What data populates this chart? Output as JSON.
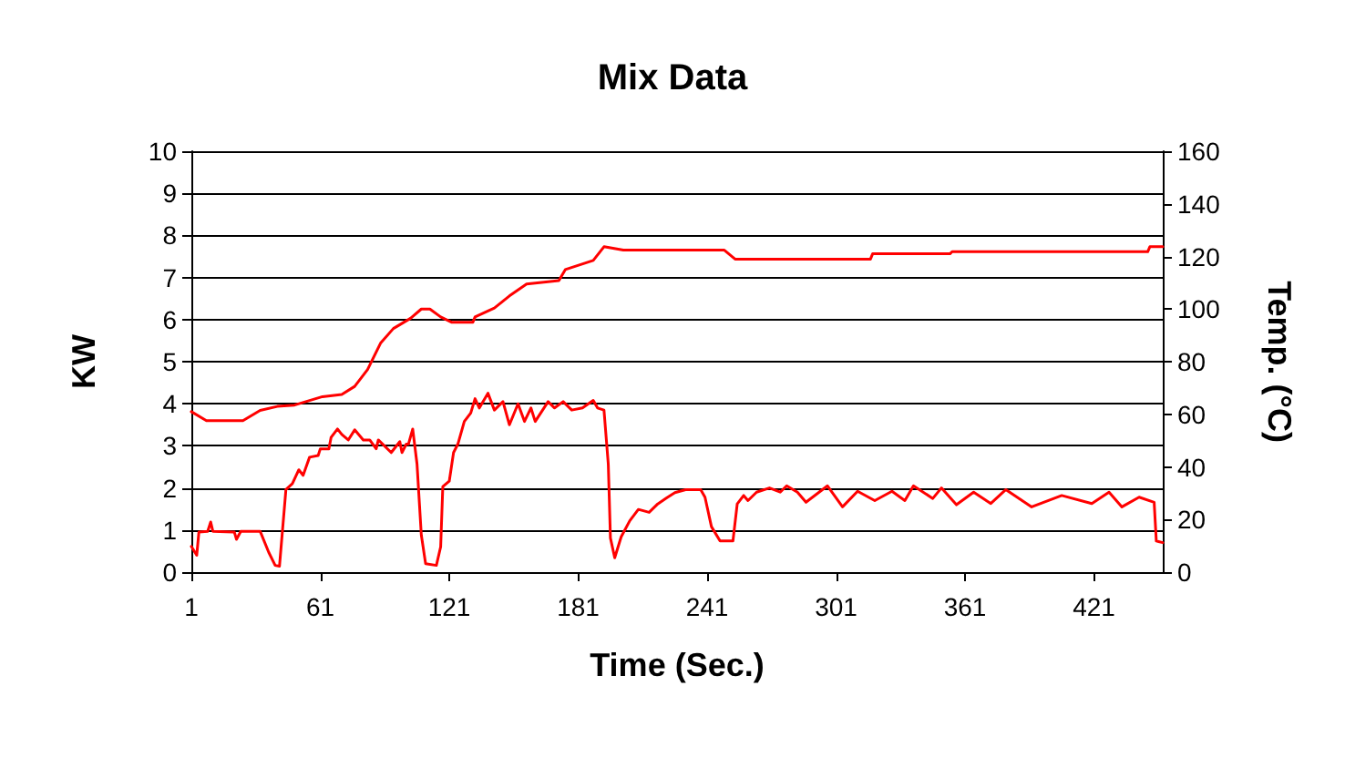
{
  "chart_data": {
    "type": "line",
    "title": "Mix Data",
    "xlabel": "Time (Sec.)",
    "ylabel": "KW",
    "y2label": "Temp. (°C)",
    "xlim": [
      1,
      453
    ],
    "xticks": [
      1,
      61,
      121,
      181,
      241,
      301,
      361,
      421
    ],
    "ylim": [
      0,
      10
    ],
    "yticks": [
      0,
      1,
      2,
      3,
      4,
      5,
      6,
      7,
      8,
      9,
      10
    ],
    "y2lim": [
      0,
      160
    ],
    "y2ticks": [
      0,
      20,
      40,
      60,
      80,
      100,
      120,
      140,
      160
    ],
    "grid": "y",
    "marker": "none",
    "line_style": "solid",
    "series": [
      {
        "color": "#ff0000",
        "x": [
          1,
          3.5,
          4.5,
          8.6,
          10,
          11,
          21,
          22,
          24,
          33,
          37,
          40,
          42,
          45,
          48,
          51,
          53,
          56,
          60,
          61,
          65,
          66,
          69,
          71,
          74,
          77,
          81,
          84,
          87,
          88,
          94,
          98,
          99,
          101,
          102,
          104,
          106,
          108,
          110,
          115,
          117,
          118,
          121,
          123,
          125,
          128,
          131,
          133,
          135,
          139,
          142,
          146,
          149,
          153,
          156,
          159,
          161,
          167,
          170,
          174,
          178,
          183,
          188,
          190,
          193,
          195,
          196,
          198,
          201,
          205,
          209,
          214,
          218,
          222,
          226,
          231,
          238,
          240,
          243,
          247,
          253,
          255,
          258,
          260,
          264,
          270,
          275,
          278,
          283,
          287,
          297,
          304,
          311,
          319,
          327,
          333,
          337,
          346,
          350,
          357,
          365,
          373,
          380,
          392,
          406,
          420,
          428,
          434,
          442,
          449,
          450,
          453
        ],
        "values": [
          0.61,
          0.4,
          0.95,
          0.97,
          1.19,
          0.97,
          0.95,
          0.78,
          0.97,
          0.97,
          0.47,
          0.16,
          0.14,
          1.96,
          2.1,
          2.43,
          2.3,
          2.73,
          2.77,
          2.93,
          2.93,
          3.2,
          3.4,
          3.27,
          3.14,
          3.38,
          3.14,
          3.14,
          2.93,
          3.14,
          2.84,
          3.1,
          2.84,
          3.04,
          3.04,
          3.4,
          2.57,
          0.88,
          0.2,
          0.16,
          0.6,
          2.03,
          2.16,
          2.84,
          3.04,
          3.58,
          3.78,
          4.12,
          3.9,
          4.25,
          3.85,
          4.05,
          3.5,
          4.0,
          3.58,
          3.9,
          3.58,
          4.05,
          3.9,
          4.05,
          3.85,
          3.9,
          4.08,
          3.9,
          3.85,
          2.57,
          0.81,
          0.34,
          0.84,
          1.22,
          1.49,
          1.42,
          1.62,
          1.76,
          1.89,
          1.96,
          1.96,
          1.78,
          1.08,
          0.74,
          0.74,
          1.62,
          1.82,
          1.7,
          1.9,
          2.0,
          1.9,
          2.05,
          1.9,
          1.66,
          2.05,
          1.55,
          1.92,
          1.7,
          1.92,
          1.7,
          2.05,
          1.75,
          2.0,
          1.6,
          1.9,
          1.63,
          1.96,
          1.55,
          1.82,
          1.63,
          1.9,
          1.55,
          1.78,
          1.66,
          0.74,
          0.7
        ]
      },
      {
        "color": "#ff0000",
        "axis": "y2",
        "x": [
          1,
          8,
          25,
          33,
          41,
          49,
          62,
          71,
          77,
          83,
          89,
          95,
          103,
          108,
          112,
          117,
          122,
          132,
          133,
          142,
          149,
          157,
          172,
          175,
          188,
          193,
          202,
          249,
          254,
          317,
          318,
          354,
          355,
          446,
          447,
          453
        ],
        "values": [
          61,
          57.6,
          57.6,
          61.5,
          63,
          63.5,
          66.7,
          67.5,
          70.6,
          77,
          87,
          92.6,
          96.5,
          100,
          100,
          97,
          95,
          95,
          97,
          100.4,
          105,
          109.5,
          110.8,
          115,
          118.5,
          123.7,
          122.4,
          122.4,
          119,
          119,
          121,
          121,
          121.8,
          121.8,
          123.7,
          123.7
        ]
      }
    ]
  }
}
